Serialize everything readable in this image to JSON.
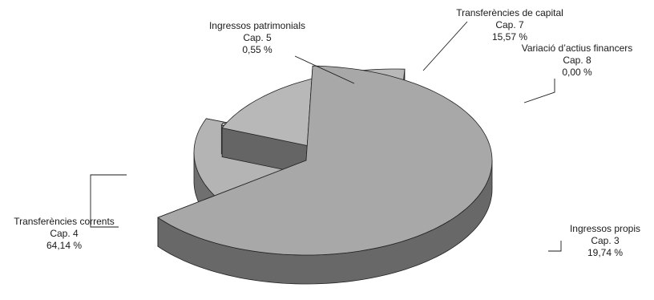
{
  "chart_data": {
    "type": "pie",
    "style": "3d-exploded",
    "slices": [
      {
        "name": "Transferències corrents",
        "chapter": "Cap. 4",
        "value": 64.14,
        "value_label": "64,14 %",
        "color": "#a8a8a8"
      },
      {
        "name": "Ingressos patrimonials",
        "chapter": "Cap. 5",
        "value": 0.55,
        "value_label": "0,55 %",
        "color": "#d9d9d9"
      },
      {
        "name": "Transferències de capital",
        "chapter": "Cap. 7",
        "value": 15.57,
        "value_label": "15,57 %",
        "color": "#b4b4b4"
      },
      {
        "name": "Variació d’actius financers",
        "chapter": "Cap. 8",
        "value": 0.0,
        "value_label": "0,00 %",
        "color": "#e2e2e2"
      },
      {
        "name": "Ingressos propis",
        "chapter": "Cap. 3",
        "value": 19.74,
        "value_label": "19,74 %",
        "color": "#b8b8b8"
      }
    ]
  }
}
